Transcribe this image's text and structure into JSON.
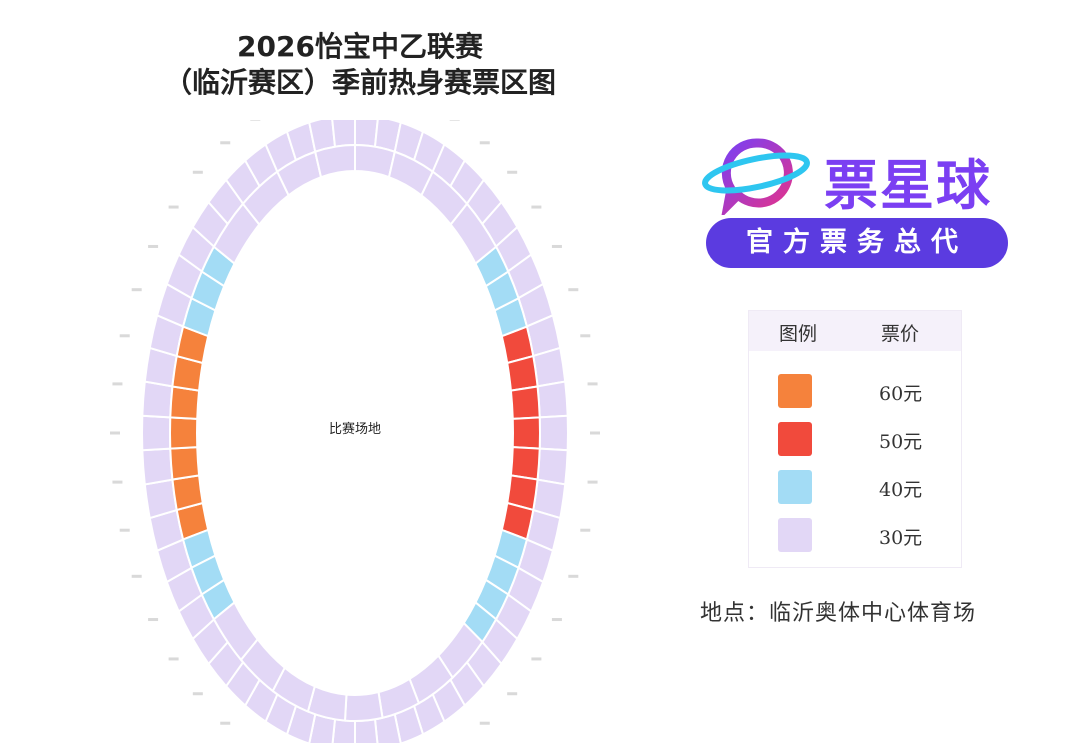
{
  "title": {
    "line1": "2026怡宝中乙联赛",
    "line2": "（临沂赛区）季前热身赛票区图"
  },
  "field_label": "比赛场地",
  "brand": {
    "name": "票星球",
    "badge": "官方票务总代",
    "logo_icon": "planet-chat-icon",
    "logo_colors": [
      "#2ec6f0",
      "#7b3ff2",
      "#e0338e"
    ]
  },
  "legend": {
    "header_icon": "图例",
    "header_price": "票价",
    "items": [
      {
        "price": "60元",
        "color": "#f5823c"
      },
      {
        "price": "50元",
        "color": "#f14a3c"
      },
      {
        "price": "40元",
        "color": "#a3dcf5"
      },
      {
        "price": "30元",
        "color": "#e2d7f6"
      }
    ]
  },
  "location": "地点：临沂奥体中心体育场",
  "seating_map": {
    "inner_ring_sections": 58,
    "west_60_sections": 7,
    "east_50_sections": 7,
    "west_40_upper_sections": 3,
    "west_40_lower_sections": 3,
    "east_40_upper_sections": 3,
    "east_40_lower_sections": 4
  }
}
